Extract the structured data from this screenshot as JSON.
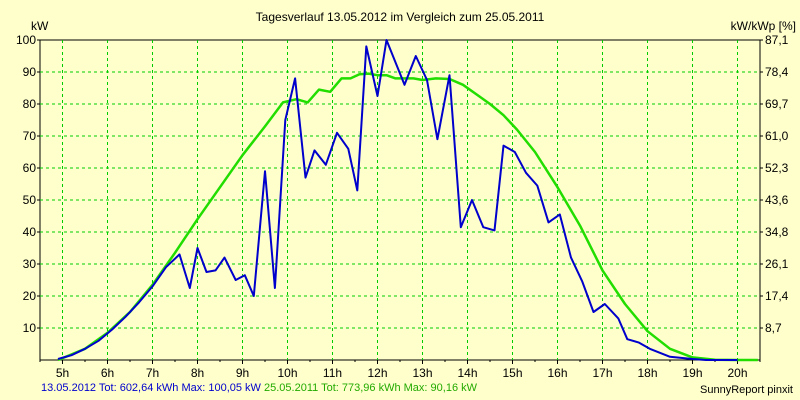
{
  "chart_data": {
    "type": "line",
    "title": "Tagesverlauf 13.05.2012 im Vergleich zum 25.05.2011",
    "ylabel_left": "kW",
    "ylabel_right": "kW/kWp [%]",
    "ylim": [
      0,
      100
    ],
    "y_ticks_left": [
      "10",
      "20",
      "30",
      "40",
      "50",
      "60",
      "70",
      "80",
      "90",
      "100"
    ],
    "y_ticks_right": [
      "8,7",
      "17,4",
      "26,1",
      "34,8",
      "43,6",
      "52,3",
      "61,0",
      "69,7",
      "78,4",
      "87,1"
    ],
    "xlim": [
      4.5,
      20.5
    ],
    "x_ticks": [
      "5h",
      "6h",
      "7h",
      "8h",
      "9h",
      "10h",
      "11h",
      "12h",
      "13h",
      "14h",
      "15h",
      "16h",
      "17h",
      "18h",
      "19h",
      "20h"
    ],
    "grid": true,
    "colors": {
      "series_2012": "#0000cc",
      "series_2011": "#22dd00",
      "grid": "#00cc00",
      "background": "#ffffcc"
    },
    "series": [
      {
        "key": "s2012",
        "x": [
          4.9,
          5.2,
          5.5,
          5.8,
          6.1,
          6.4,
          6.7,
          7.0,
          7.3,
          7.6,
          7.83,
          8.0,
          8.2,
          8.4,
          8.6,
          8.85,
          9.05,
          9.25,
          9.5,
          9.72,
          9.95,
          10.17,
          10.4,
          10.6,
          10.85,
          11.1,
          11.35,
          11.55,
          11.75,
          12.0,
          12.2,
          12.4,
          12.6,
          12.85,
          13.1,
          13.33,
          13.6,
          13.85,
          14.1,
          14.35,
          14.6,
          14.8,
          15.05,
          15.3,
          15.55,
          15.8,
          16.05,
          16.3,
          16.55,
          16.8,
          17.05,
          17.35,
          17.55,
          17.8,
          18.05,
          18.5,
          19.0,
          19.3,
          19.6,
          20.0
        ],
        "y": [
          0.3,
          1.5,
          3.5,
          6,
          9.5,
          13.5,
          18,
          23,
          29,
          33,
          22.5,
          35,
          27.5,
          28,
          32,
          25,
          26.5,
          20,
          59,
          22.5,
          75,
          88,
          57,
          65.5,
          61,
          71,
          66,
          53,
          98,
          82.5,
          100,
          93,
          86,
          95,
          87.5,
          69,
          89,
          41.5,
          50,
          41.5,
          40.5,
          67,
          65,
          58.5,
          54.5,
          43,
          45.5,
          32,
          24.5,
          15,
          17.5,
          13,
          6.5,
          5.5,
          3.5,
          1,
          0.3,
          0,
          0,
          0
        ]
      },
      {
        "key": "s2011",
        "x": [
          4.9,
          5.5,
          6.0,
          6.5,
          7.0,
          7.5,
          8.0,
          8.5,
          9.0,
          9.5,
          9.9,
          10.2,
          10.45,
          10.7,
          10.95,
          11.2,
          11.4,
          11.6,
          11.8,
          12.0,
          12.2,
          12.4,
          12.6,
          12.8,
          13.0,
          13.3,
          13.6,
          13.9,
          14.2,
          14.5,
          14.8,
          15.1,
          15.5,
          16.0,
          16.5,
          17.0,
          17.5,
          18.0,
          18.5,
          19.0,
          19.5,
          20.0,
          20.45
        ],
        "y": [
          0,
          3.5,
          8.5,
          15,
          23.5,
          33.5,
          44,
          54,
          64,
          73,
          80.5,
          81.5,
          80.5,
          84.5,
          83.8,
          88,
          88,
          89.3,
          89.5,
          89,
          89,
          88,
          88,
          88,
          87.5,
          88,
          87.8,
          86,
          83,
          80,
          76.5,
          72,
          65,
          54,
          42,
          28,
          17.5,
          9,
          3.5,
          0.8,
          0.1,
          0,
          0
        ]
      }
    ],
    "footer": {
      "series_2012": "13.05.2012 Tot: 602,64 kWh Max: 100,05 kW",
      "series_2011": "25.05.2011 Tot: 773,96 kWh Max: 90,16 kW"
    },
    "credit": "SunnyReport pinxit"
  }
}
